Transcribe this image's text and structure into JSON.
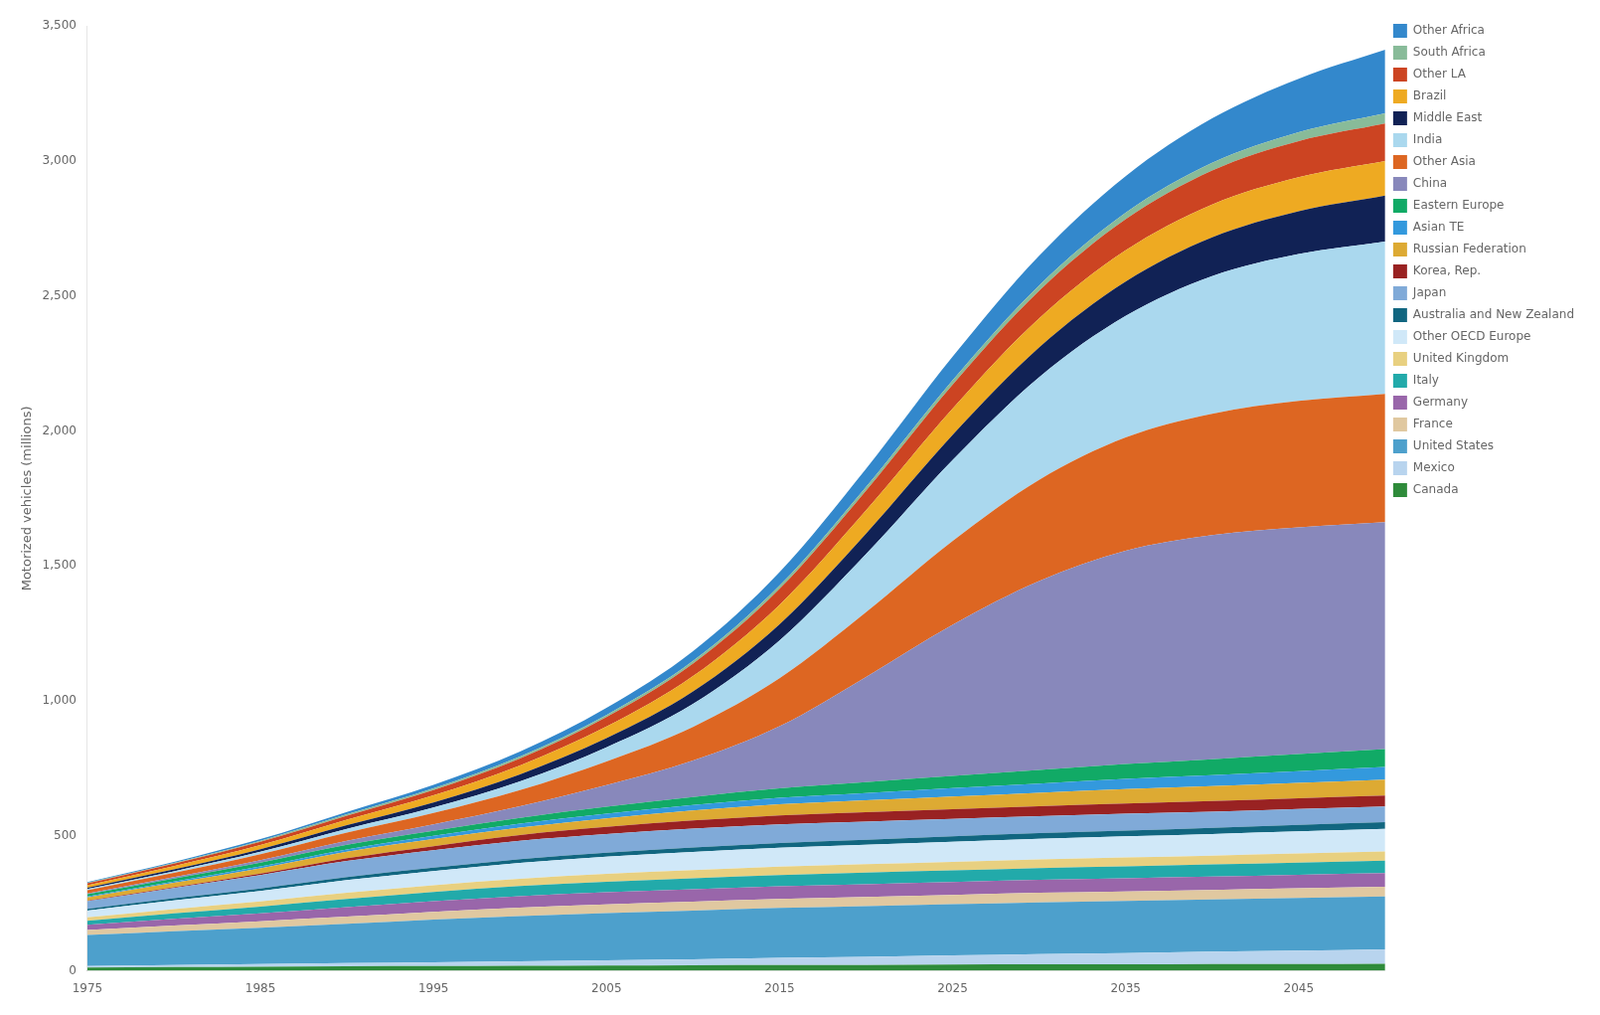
{
  "chart_data": {
    "type": "area",
    "stacked": true,
    "ylabel": "Motorized vehicles (millions)",
    "x": [
      1975,
      1980,
      1985,
      1990,
      1995,
      2000,
      2005,
      2010,
      2015,
      2020,
      2025,
      2030,
      2035,
      2040,
      2045,
      2050
    ],
    "xlim": [
      1975,
      2050
    ],
    "xticks": [
      1975,
      1985,
      1995,
      2005,
      2015,
      2025,
      2035,
      2045
    ],
    "ylim": [
      0,
      3500
    ],
    "yticks": [
      0,
      500,
      {
        "value": 1000,
        "label": "1,000"
      },
      {
        "value": 1500,
        "label": "1,500"
      },
      {
        "value": 2000,
        "label": "2,000"
      },
      {
        "value": 2500,
        "label": "2,500"
      },
      {
        "value": 3000,
        "label": "3,000"
      },
      {
        "value": 3500,
        "label": "3,500"
      }
    ],
    "grid": false,
    "legend": "right",
    "series": [
      {
        "name": "Canada",
        "color": "#2e8b3a",
        "values": [
          12,
          14,
          15,
          17,
          18,
          19,
          20,
          21,
          22,
          22,
          23,
          24,
          24,
          25,
          25,
          26
        ]
      },
      {
        "name": "Mexico",
        "color": "#b8d4ee",
        "values": [
          6,
          8,
          10,
          12,
          14,
          16,
          19,
          22,
          26,
          30,
          34,
          38,
          42,
          46,
          50,
          54
        ]
      },
      {
        "name": "United States",
        "color": "#4da0cc",
        "values": [
          115,
          125,
          135,
          145,
          158,
          168,
          175,
          180,
          185,
          188,
          190,
          192,
          193,
          194,
          195,
          196
        ]
      },
      {
        "name": "France",
        "color": "#e0c8a0",
        "values": [
          18,
          21,
          24,
          27,
          29,
          31,
          32,
          33,
          33,
          34,
          34,
          35,
          35,
          35,
          36,
          36
        ]
      },
      {
        "name": "Germany",
        "color": "#9966aa",
        "values": [
          20,
          25,
          29,
          35,
          39,
          43,
          45,
          46,
          47,
          47,
          48,
          48,
          49,
          49,
          50,
          50
        ]
      },
      {
        "name": "Italy",
        "color": "#22aaaa",
        "values": [
          14,
          20,
          25,
          30,
          34,
          37,
          39,
          41,
          42,
          43,
          43,
          44,
          44,
          45,
          45,
          46
        ]
      },
      {
        "name": "United Kingdom",
        "color": "#e8d080",
        "values": [
          13,
          16,
          19,
          23,
          25,
          27,
          29,
          30,
          31,
          31,
          32,
          32,
          33,
          33,
          34,
          34
        ]
      },
      {
        "name": "Other OECD Europe",
        "color": "#d0e8f8",
        "values": [
          25,
          32,
          39,
          47,
          53,
          59,
          64,
          67,
          70,
          72,
          74,
          76,
          78,
          80,
          82,
          84
        ]
      },
      {
        "name": "Australia and New Zealand",
        "color": "#116680",
        "values": [
          7,
          8,
          9,
          11,
          12,
          14,
          15,
          17,
          18,
          19,
          20,
          21,
          22,
          23,
          24,
          25
        ]
      },
      {
        "name": "Japan",
        "color": "#80aad8",
        "values": [
          28,
          38,
          50,
          60,
          65,
          68,
          69,
          70,
          69,
          67,
          65,
          63,
          62,
          60,
          59,
          58
        ]
      },
      {
        "name": "Korea, Rep.",
        "color": "#992222",
        "values": [
          2,
          3,
          5,
          10,
          15,
          21,
          26,
          30,
          33,
          35,
          36,
          37,
          38,
          39,
          39,
          40
        ]
      },
      {
        "name": "Russian Federation",
        "color": "#ddaa33",
        "values": [
          12,
          16,
          20,
          24,
          26,
          28,
          32,
          37,
          41,
          44,
          47,
          50,
          53,
          55,
          57,
          59
        ]
      },
      {
        "name": "Asian TE",
        "color": "#3399dd",
        "values": [
          4,
          5,
          7,
          9,
          12,
          14,
          17,
          20,
          24,
          27,
          31,
          34,
          38,
          41,
          44,
          47
        ]
      },
      {
        "name": "Eastern Europe",
        "color": "#11aa66",
        "values": [
          8,
          11,
          14,
          17,
          19,
          22,
          26,
          30,
          35,
          40,
          45,
          50,
          55,
          59,
          63,
          67
        ]
      },
      {
        "name": "China",
        "color": "#8888bb",
        "values": [
          3,
          5,
          9,
          15,
          24,
          43,
          80,
          135,
          230,
          390,
          560,
          700,
          790,
          830,
          840,
          840
        ]
      },
      {
        "name": "Other Asia",
        "color": "#dd6622",
        "values": [
          12,
          16,
          22,
          30,
          42,
          60,
          88,
          125,
          178,
          240,
          310,
          375,
          420,
          450,
          468,
          475
        ]
      },
      {
        "name": "India",
        "color": "#aad8ee",
        "values": [
          4,
          6,
          9,
          14,
          20,
          32,
          52,
          85,
          140,
          215,
          300,
          380,
          450,
          510,
          545,
          565
        ]
      },
      {
        "name": "Middle East",
        "color": "#112255",
        "values": [
          5,
          7,
          10,
          14,
          19,
          26,
          34,
          46,
          60,
          76,
          93,
          110,
          127,
          143,
          158,
          170
        ]
      },
      {
        "name": "Brazil",
        "color": "#eeaa22",
        "values": [
          9,
          12,
          15,
          20,
          26,
          33,
          43,
          57,
          72,
          86,
          98,
          108,
          116,
          122,
          126,
          128
        ]
      },
      {
        "name": "Other LA",
        "color": "#cc4422",
        "values": [
          7,
          9,
          12,
          15,
          20,
          26,
          35,
          46,
          59,
          73,
          88,
          102,
          115,
          126,
          134,
          139
        ]
      },
      {
        "name": "South Africa",
        "color": "#88bb99",
        "values": [
          2,
          3,
          4,
          5,
          6,
          7,
          8,
          10,
          12,
          14,
          17,
          20,
          24,
          28,
          33,
          38
        ]
      },
      {
        "name": "Other Africa",
        "color": "#3388cc",
        "values": [
          3,
          4,
          6,
          9,
          13,
          18,
          26,
          36,
          50,
          67,
          87,
          110,
          136,
          165,
          198,
          235
        ]
      }
    ]
  }
}
